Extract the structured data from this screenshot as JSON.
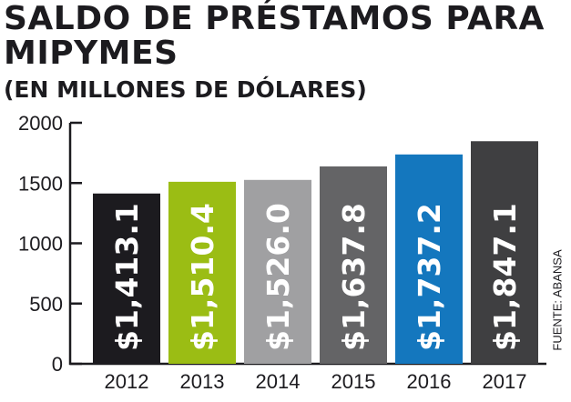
{
  "chart_data": {
    "type": "bar",
    "title": "SALDO DE PRÉSTAMOS PARA MIPYMES",
    "subtitle": "(EN MILLONES DE DÓLARES)",
    "categories": [
      "2012",
      "2013",
      "2014",
      "2015",
      "2016",
      "2017"
    ],
    "values": [
      1413.1,
      1510.4,
      1526.0,
      1637.8,
      1737.2,
      1847.1
    ],
    "data_labels": [
      "$1,413.1",
      "$1,510.4",
      "$1,526.0",
      "$1,637.8",
      "$1,737.2",
      "$1,847.1"
    ],
    "colors": [
      "#1c1b1f",
      "#9bbd14",
      "#a0a0a2",
      "#646466",
      "#1477be",
      "#3f3f41"
    ],
    "xlabel": "",
    "ylabel": "",
    "ylim": [
      0,
      2000
    ],
    "yticks": [
      "0",
      "500",
      "1000",
      "1500",
      "2000"
    ],
    "grid": false,
    "source": "FUENTE: ABANSA"
  }
}
